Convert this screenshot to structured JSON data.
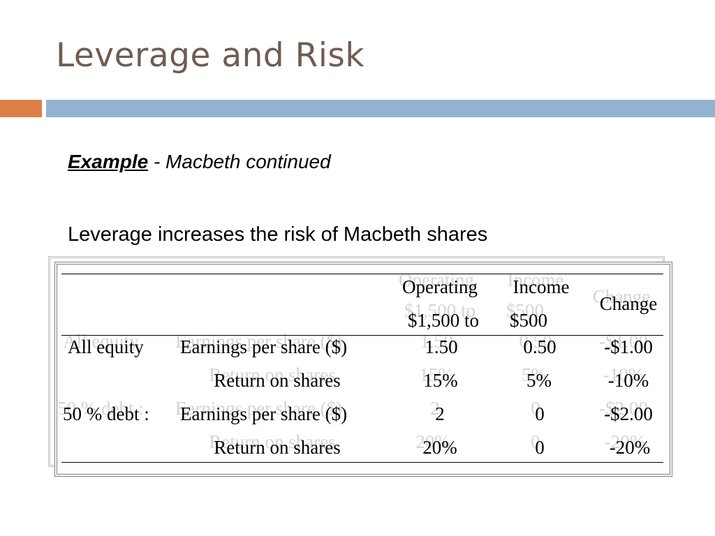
{
  "slide": {
    "title": "Leverage and Risk",
    "example_label": "Example",
    "example_rest": " - Macbeth continued",
    "body_text": "Leverage increases the risk of Macbeth shares"
  },
  "table": {
    "headers": {
      "col1_line1": "Operating",
      "col1_line2": "$1,500 to",
      "col2_line1": "Income",
      "col2_line2": "$500",
      "col3": "Change"
    },
    "rows": [
      {
        "group": "All equity",
        "label": "Earnings per share ($)",
        "v1": "1.50",
        "v2": "0.50",
        "change": "-$1.00"
      },
      {
        "group": "",
        "label": "Return on shares",
        "v1": "15%",
        "v2": "5%",
        "change": "-10%"
      },
      {
        "group": "50 % debt :",
        "label": "Earnings per share ($)",
        "v1": "2",
        "v2": "0",
        "change": "-$2.00"
      },
      {
        "group": "",
        "label": "Return on shares",
        "v1": "20%",
        "v2": "0",
        "change": "-20%"
      }
    ]
  },
  "colors": {
    "title": "#705c50",
    "accent_orange": "#dd8048",
    "accent_blue": "#93b2d2"
  }
}
